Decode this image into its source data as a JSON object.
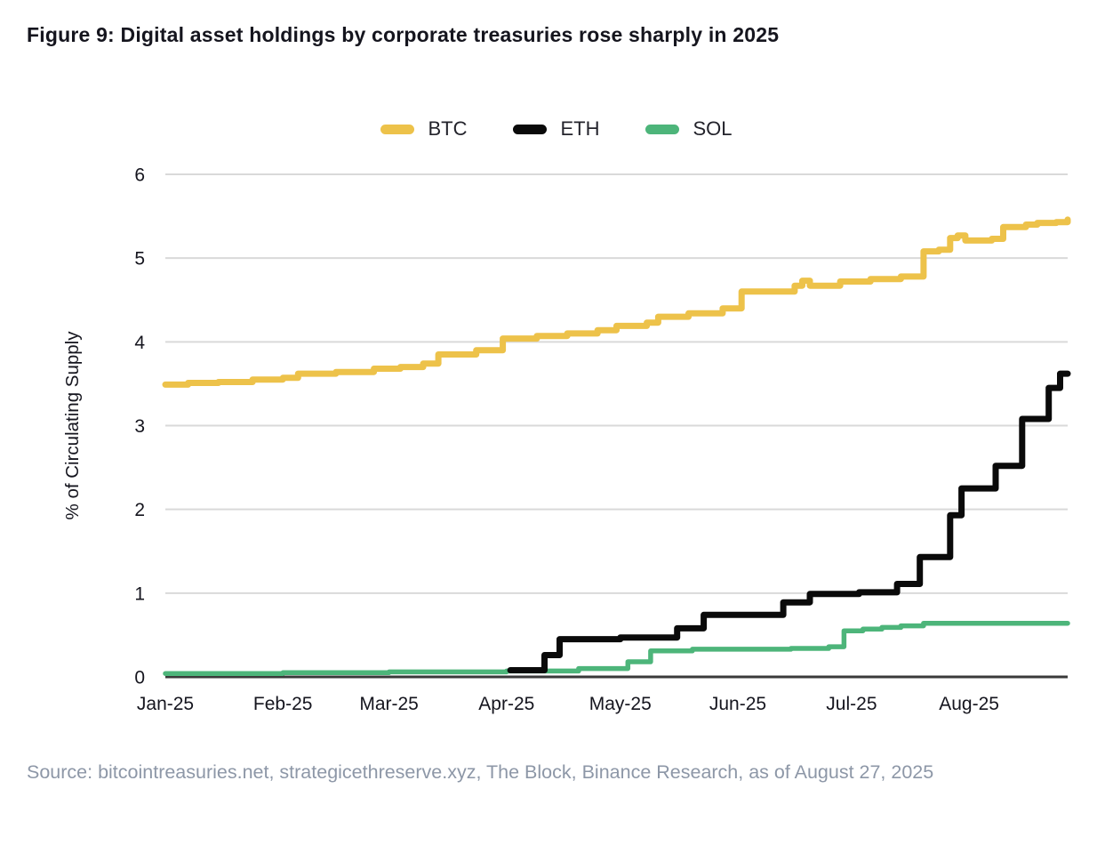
{
  "title": "Figure 9: Digital asset holdings by corporate treasuries rose sharply in 2025",
  "legend": {
    "items": [
      {
        "label": "BTC",
        "color": "#edc24a"
      },
      {
        "label": "ETH",
        "color": "#0a0a0a"
      },
      {
        "label": "SOL",
        "color": "#4db57a"
      }
    ]
  },
  "source": "Source: bitcointreasuries.net, strategicethreserve.xyz, The Block, Binance Research, as of August 27, 2025",
  "chart_data": {
    "type": "line",
    "step": true,
    "title": "Figure 9: Digital asset holdings by corporate treasuries rose sharply in 2025",
    "xlabel": "",
    "ylabel": "% of Circulating Supply",
    "ylim": [
      0,
      6
    ],
    "yticks": [
      "0",
      "1",
      "2",
      "3",
      "4",
      "5",
      "6"
    ],
    "x_domain": [
      "2025-01-01",
      "2025-08-27"
    ],
    "xticks": [
      {
        "date": "2025-01-01",
        "label": "Jan-25"
      },
      {
        "date": "2025-02-01",
        "label": "Feb-25"
      },
      {
        "date": "2025-03-01",
        "label": "Mar-25"
      },
      {
        "date": "2025-04-01",
        "label": "Apr-25"
      },
      {
        "date": "2025-05-01",
        "label": "May-25"
      },
      {
        "date": "2025-06-01",
        "label": "Jun-25"
      },
      {
        "date": "2025-07-01",
        "label": "Jul-25"
      },
      {
        "date": "2025-08-01",
        "label": "Aug-25"
      }
    ],
    "grid": "horizontal",
    "legend_position": "top-center",
    "colors": {
      "grid": "#d9d9d9",
      "axis": "#3a3a3a",
      "tick_text": "#15151e",
      "source_text": "#8d97a7"
    },
    "series": [
      {
        "name": "BTC",
        "color": "#edc24a",
        "points": [
          [
            "2025-01-01",
            3.49
          ],
          [
            "2025-01-07",
            3.51
          ],
          [
            "2025-01-15",
            3.52
          ],
          [
            "2025-01-24",
            3.55
          ],
          [
            "2025-02-01",
            3.57
          ],
          [
            "2025-02-05",
            3.62
          ],
          [
            "2025-02-15",
            3.64
          ],
          [
            "2025-02-25",
            3.68
          ],
          [
            "2025-03-04",
            3.7
          ],
          [
            "2025-03-10",
            3.74
          ],
          [
            "2025-03-14",
            3.85
          ],
          [
            "2025-03-24",
            3.9
          ],
          [
            "2025-03-31",
            4.04
          ],
          [
            "2025-04-09",
            4.07
          ],
          [
            "2025-04-17",
            4.1
          ],
          [
            "2025-04-25",
            4.14
          ],
          [
            "2025-04-30",
            4.19
          ],
          [
            "2025-05-08",
            4.23
          ],
          [
            "2025-05-11",
            4.3
          ],
          [
            "2025-05-19",
            4.34
          ],
          [
            "2025-05-28",
            4.4
          ],
          [
            "2025-06-02",
            4.6
          ],
          [
            "2025-06-16",
            4.67
          ],
          [
            "2025-06-18",
            4.73
          ],
          [
            "2025-06-20",
            4.67
          ],
          [
            "2025-06-28",
            4.72
          ],
          [
            "2025-07-06",
            4.75
          ],
          [
            "2025-07-14",
            4.78
          ],
          [
            "2025-07-20",
            5.08
          ],
          [
            "2025-07-24",
            5.1
          ],
          [
            "2025-07-27",
            5.24
          ],
          [
            "2025-07-29",
            5.27
          ],
          [
            "2025-07-31",
            5.21
          ],
          [
            "2025-08-07",
            5.23
          ],
          [
            "2025-08-10",
            5.37
          ],
          [
            "2025-08-16",
            5.4
          ],
          [
            "2025-08-19",
            5.42
          ],
          [
            "2025-08-24",
            5.43
          ],
          [
            "2025-08-27",
            5.46
          ]
        ]
      },
      {
        "name": "ETH",
        "color": "#0a0a0a",
        "points": [
          [
            "2025-04-02",
            0.08
          ],
          [
            "2025-04-11",
            0.26
          ],
          [
            "2025-04-15",
            0.45
          ],
          [
            "2025-05-01",
            0.47
          ],
          [
            "2025-05-16",
            0.58
          ],
          [
            "2025-05-23",
            0.74
          ],
          [
            "2025-06-13",
            0.89
          ],
          [
            "2025-06-20",
            0.99
          ],
          [
            "2025-07-03",
            1.01
          ],
          [
            "2025-07-13",
            1.11
          ],
          [
            "2025-07-19",
            1.43
          ],
          [
            "2025-07-27",
            1.93
          ],
          [
            "2025-07-30",
            2.25
          ],
          [
            "2025-08-08",
            2.52
          ],
          [
            "2025-08-15",
            3.08
          ],
          [
            "2025-08-22",
            3.45
          ],
          [
            "2025-08-25",
            3.62
          ],
          [
            "2025-08-27",
            3.62
          ]
        ]
      },
      {
        "name": "SOL",
        "color": "#4db57a",
        "points": [
          [
            "2025-01-01",
            0.04
          ],
          [
            "2025-02-01",
            0.05
          ],
          [
            "2025-03-01",
            0.06
          ],
          [
            "2025-04-01",
            0.07
          ],
          [
            "2025-04-20",
            0.1
          ],
          [
            "2025-05-03",
            0.18
          ],
          [
            "2025-05-09",
            0.31
          ],
          [
            "2025-05-20",
            0.33
          ],
          [
            "2025-06-15",
            0.34
          ],
          [
            "2025-06-25",
            0.36
          ],
          [
            "2025-06-29",
            0.55
          ],
          [
            "2025-07-04",
            0.57
          ],
          [
            "2025-07-09",
            0.59
          ],
          [
            "2025-07-14",
            0.61
          ],
          [
            "2025-07-20",
            0.64
          ],
          [
            "2025-08-27",
            0.64
          ]
        ]
      }
    ]
  }
}
